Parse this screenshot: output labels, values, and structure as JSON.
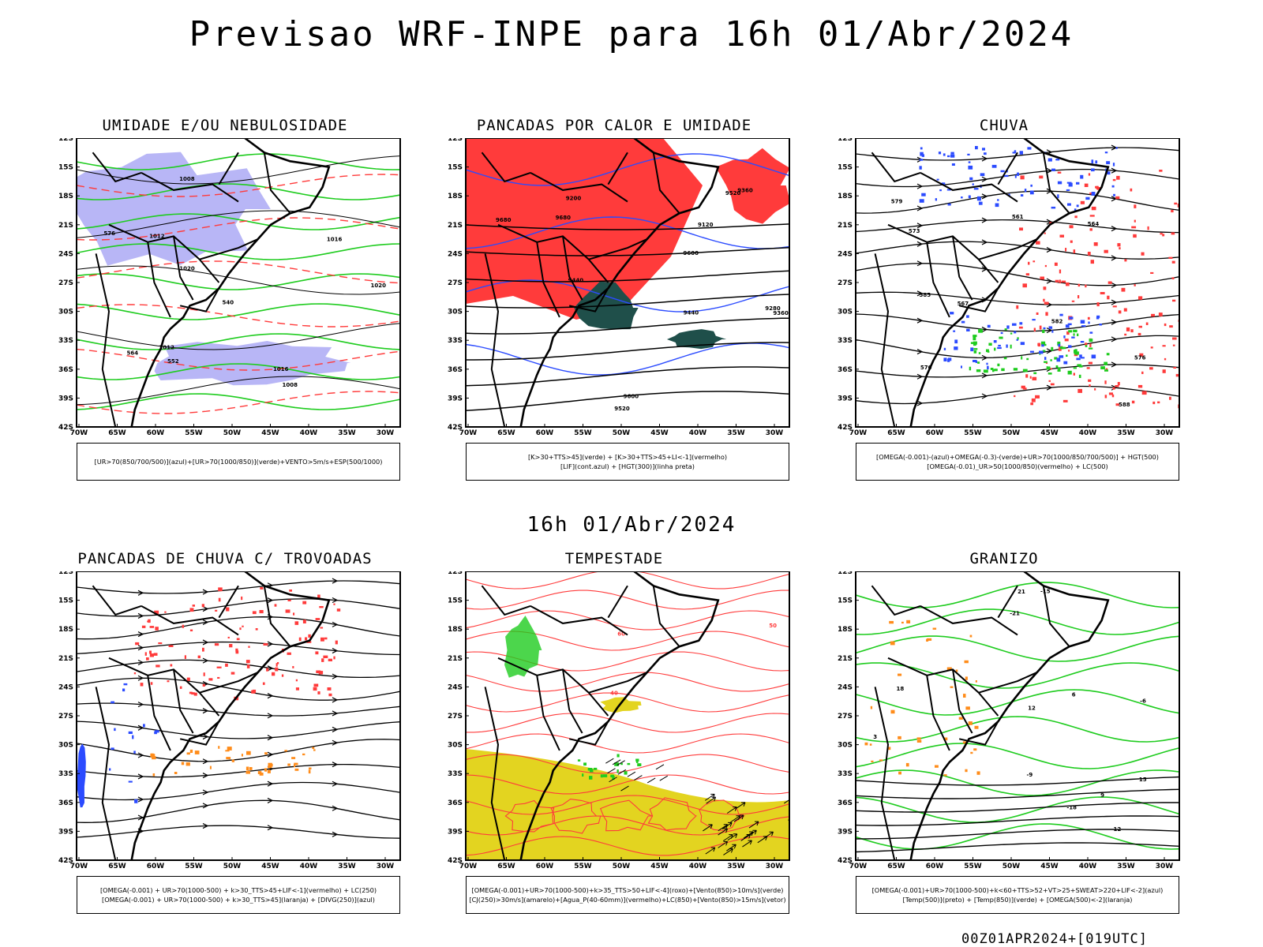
{
  "title": "Previsao WRF-INPE  para 16h 01/Abr/2024",
  "mid_date": "16h 01/Abr/2024",
  "footer": "00Z01APR2024+[019UTC]",
  "axes": {
    "lat_labels": [
      "12S",
      "15S",
      "18S",
      "21S",
      "24S",
      "27S",
      "30S",
      "33S",
      "36S",
      "39S",
      "42S"
    ],
    "lon_labels": [
      "70W",
      "65W",
      "60W",
      "55W",
      "50W",
      "45W",
      "40W",
      "35W",
      "30W"
    ]
  },
  "colors": {
    "red": "#ff3b3b",
    "blue": "#2b4bff",
    "green": "#1fcc1f",
    "lavender": "#b0aef5",
    "yellow": "#e3d420",
    "orange": "#ff8c1a",
    "darkteal": "#1f4f4a",
    "black": "#000000"
  },
  "panels": [
    {
      "title": "UMIDADE E/OU NEBULOSIDADE",
      "legend": [
        "[UR>70(850/700/500)](azul)+[UR>70(1000/850)](verde)+VENTO>5m/s+ESP(500/1000)"
      ],
      "contour_labels": [
        "1008",
        "1008",
        "1012",
        "1012",
        "1016",
        "1016",
        "1020",
        "1020",
        "540",
        "552",
        "564",
        "576"
      ]
    },
    {
      "title": "PANCADAS POR CALOR E UMIDADE",
      "legend": [
        "[K>30+TTS>45](verde) + [K>30+TTS>45+LI<-1](vermelho)",
        "[LIF](cont.azul) + [HGT(300)](linha preta)"
      ],
      "contour_labels": [
        "9680",
        "9680",
        "9600",
        "9600",
        "9520",
        "9520",
        "9440",
        "9440",
        "9360",
        "9360",
        "9280",
        "9200",
        "9120"
      ]
    },
    {
      "title": "CHUVA",
      "legend": [
        "[OMEGA(-0.001)-(azul)+OMEGA(-0.3)-(verde)+UR>70(1000/850/700/500)] + HGT(500)",
        "[OMEGA(-0.01)_UR>50(1000/850)(vermelho) + LC(500)"
      ],
      "contour_labels": [
        "588",
        "585",
        "582",
        "579",
        "576",
        "573",
        "570",
        "567",
        "564",
        "561"
      ]
    },
    {
      "title": "PANCADAS DE CHUVA C/ TROVOADAS",
      "legend": [
        "[OMEGA(-0.001) + UR>70(1000-500) + k>30_TTS>45+LIF<-1](vermelho) + LC(250)",
        "[OMEGA(-0.001) + UR>70(1000-500) + k>30_TTS>45](laranja) + [DIVG(250)](azul)"
      ],
      "contour_labels": []
    },
    {
      "title": "TEMPESTADE",
      "legend": [
        "[OMEGA(-0.001)+UR>70(1000-500)+k>35_TTS>50+LIF<-4](roxo)+[Vento(850)>10m/s](verde)",
        "[CJ(250)>30m/s](amarelo)+[Agua_P(40-60mm)](vermelho)+LC(850)+[Vento(850)>15m/s](vetor)"
      ],
      "contour_labels": [
        "40",
        "50",
        "60"
      ]
    },
    {
      "title": "GRANIZO",
      "legend": [
        "[OMEGA(-0.001)+UR>70(1000-500)+k<60+TTS>52+VT>25+SWEAT>220+LIF<-2](azul)",
        "[Temp(500)](preto) + [Temp(850)](verde) + [OMEGA(500)<-2](laranja)"
      ],
      "contour_labels": [
        "-6",
        "-9",
        "-12",
        "-15",
        "-18",
        "-21",
        "3",
        "6",
        "9",
        "12",
        "15",
        "18",
        "21"
      ]
    }
  ]
}
